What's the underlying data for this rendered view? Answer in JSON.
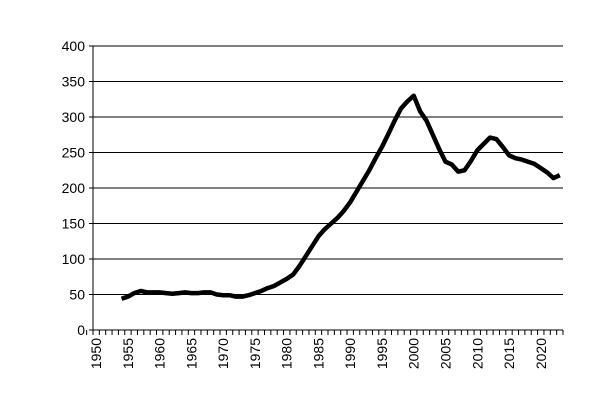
{
  "chart_data": {
    "type": "line",
    "x": [
      1954,
      1955,
      1956,
      1957,
      1958,
      1959,
      1960,
      1961,
      1962,
      1963,
      1964,
      1965,
      1966,
      1967,
      1968,
      1969,
      1970,
      1971,
      1972,
      1973,
      1974,
      1975,
      1976,
      1977,
      1978,
      1979,
      1980,
      1981,
      1982,
      1983,
      1984,
      1985,
      1986,
      1987,
      1988,
      1989,
      1990,
      1991,
      1992,
      1993,
      1994,
      1995,
      1996,
      1997,
      1998,
      1999,
      2000,
      2001,
      2002,
      2003,
      2004,
      2005,
      2006,
      2007,
      2008,
      2009,
      2010,
      2011,
      2012,
      2013,
      2014,
      2015,
      2016,
      2017,
      2018,
      2019,
      2020,
      2021,
      2022,
      2023
    ],
    "values": [
      44,
      47,
      52,
      55,
      53,
      53,
      53,
      52,
      51,
      52,
      53,
      52,
      52,
      53,
      53,
      50,
      49,
      49,
      47,
      47,
      49,
      52,
      55,
      59,
      62,
      67,
      72,
      78,
      90,
      104,
      118,
      132,
      142,
      150,
      158,
      168,
      180,
      195,
      210,
      225,
      242,
      258,
      276,
      295,
      312,
      322,
      330,
      308,
      295,
      275,
      255,
      237,
      233,
      223,
      225,
      238,
      253,
      262,
      271,
      269,
      258,
      246,
      242,
      240,
      237,
      234,
      228,
      222,
      214,
      218
    ],
    "color": "#000000",
    "xlim": [
      1949.5,
      2023.5
    ],
    "xticks": [
      1950,
      1955,
      1960,
      1965,
      1970,
      1975,
      1980,
      1985,
      1990,
      1995,
      2000,
      2005,
      2010,
      2015,
      2020
    ],
    "ylim": [
      0,
      400
    ],
    "yticks": [
      0,
      50,
      100,
      150,
      200,
      250,
      300,
      350,
      400
    ],
    "grid": true
  }
}
